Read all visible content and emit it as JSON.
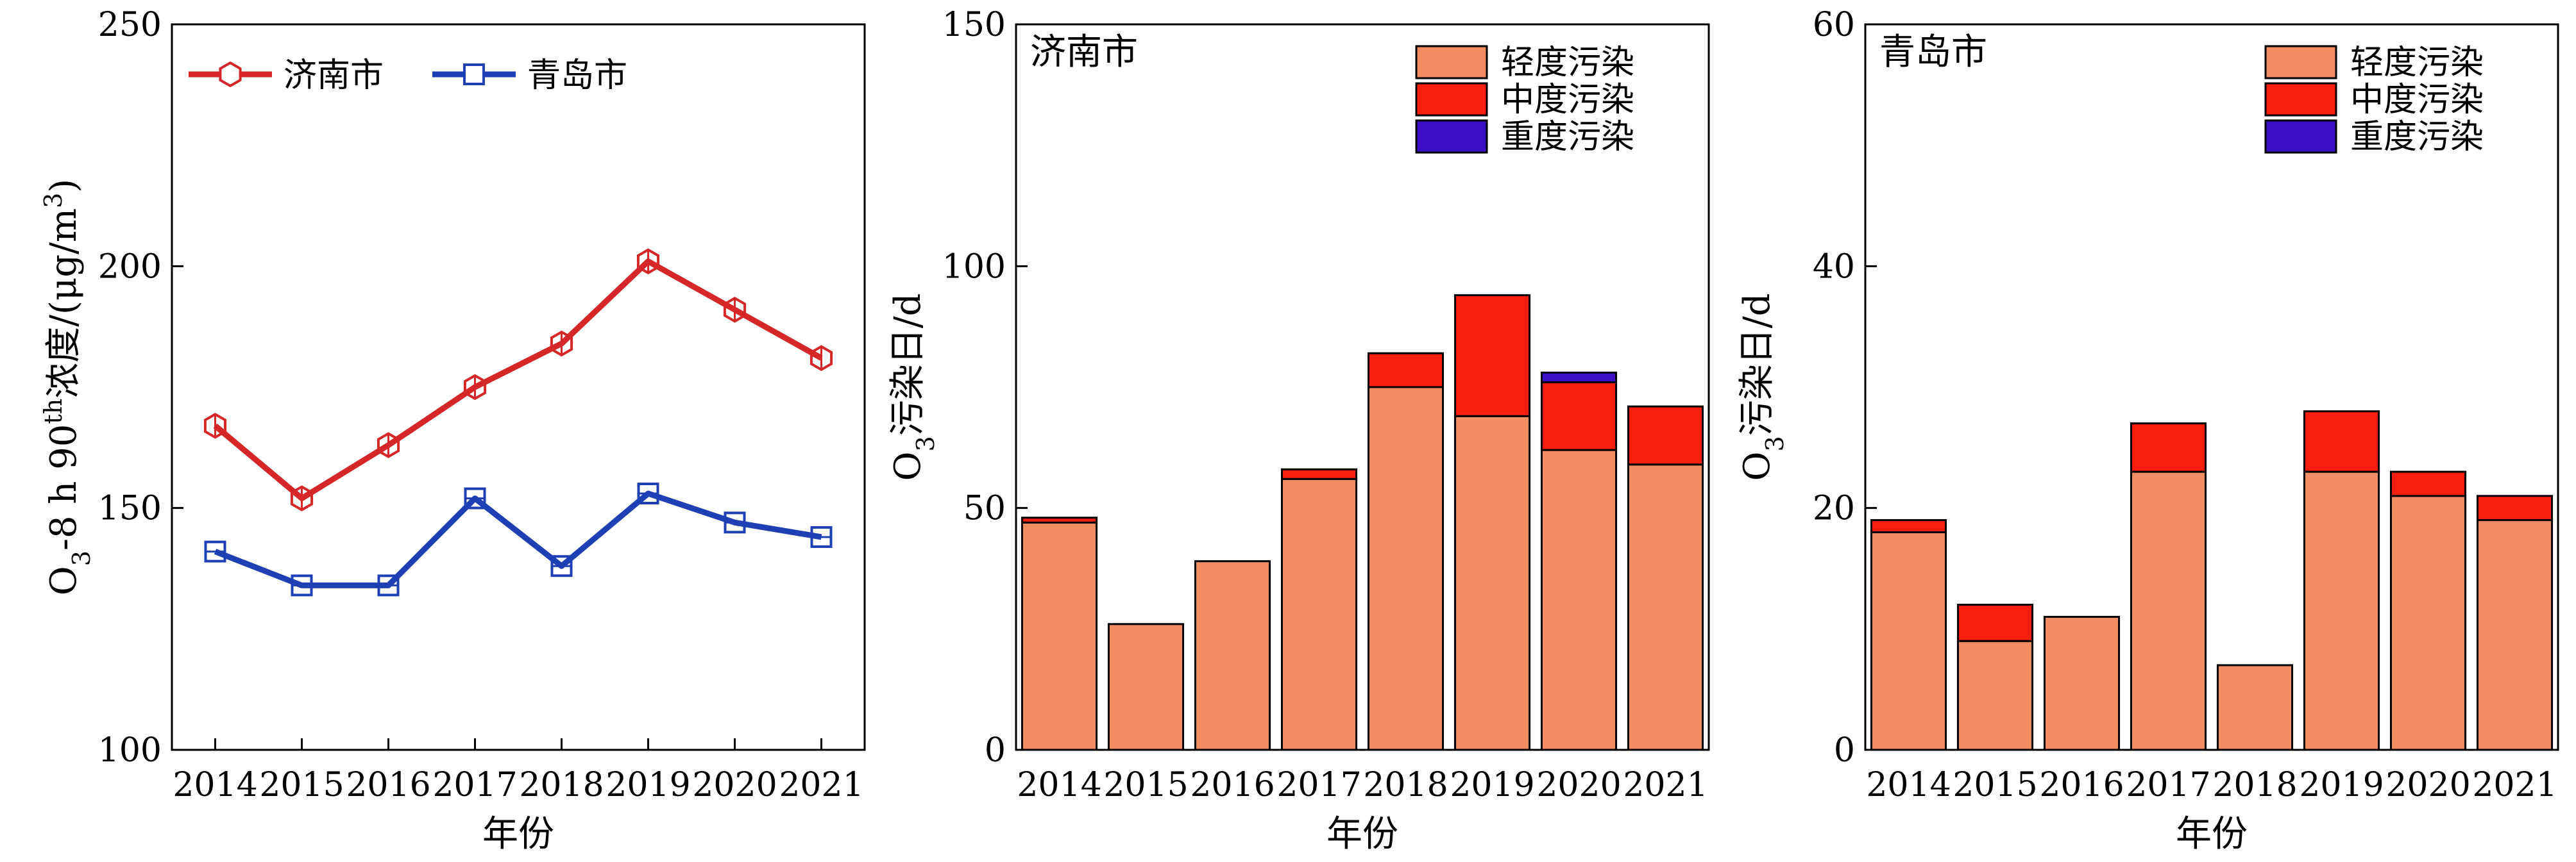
{
  "chart_data": [
    {
      "type": "line",
      "title": "",
      "xlabel": "年份",
      "ylabel": "O3-8 h 90th浓度/(μg/m3)",
      "ylabel_parts": {
        "main": "O",
        "sub": "3",
        "mid": "-8 h 90",
        "sup": "th",
        "tail": "浓度/(μg/m",
        "sup2": "3",
        "end": ")"
      },
      "ylim": [
        100,
        250
      ],
      "yticks": [
        "100",
        "150",
        "200",
        "250"
      ],
      "categories": [
        "2014",
        "2015",
        "2016",
        "2017",
        "2018",
        "2019",
        "2020",
        "2021"
      ],
      "legend_position": "top-left",
      "series": [
        {
          "name": "济南市",
          "color": "#d62728",
          "marker": "hexagon",
          "values": [
            167,
            152,
            163,
            175,
            184,
            201,
            191,
            181
          ]
        },
        {
          "name": "青岛市",
          "color": "#1f3fb4",
          "marker": "square",
          "values": [
            141,
            134,
            134,
            152,
            138,
            153,
            147,
            144
          ]
        }
      ]
    },
    {
      "type": "bar",
      "stacked": true,
      "title": "济南市",
      "xlabel": "年份",
      "ylabel": "O3污染日/d",
      "ylabel_parts": {
        "main": "O",
        "sub": "3",
        "tail": "污染日/d"
      },
      "ylim": [
        0,
        150
      ],
      "yticks": [
        "0",
        "50",
        "100",
        "150"
      ],
      "categories": [
        "2014",
        "2015",
        "2016",
        "2017",
        "2018",
        "2019",
        "2020",
        "2021"
      ],
      "legend_position": "top-right",
      "series": [
        {
          "name": "轻度污染",
          "color": "#f28c62",
          "values": [
            47,
            26,
            39,
            56,
            75,
            69,
            62,
            59
          ]
        },
        {
          "name": "中度污染",
          "color": "#fa1e0e",
          "values": [
            1,
            0,
            0,
            2,
            7,
            25,
            14,
            12
          ]
        },
        {
          "name": "重度污染",
          "color": "#3d0fc4",
          "values": [
            0,
            0,
            0,
            0,
            0,
            0,
            2,
            0
          ]
        }
      ]
    },
    {
      "type": "bar",
      "stacked": true,
      "title": "青岛市",
      "xlabel": "年份",
      "ylabel": "O3污染日/d",
      "ylabel_parts": {
        "main": "O",
        "sub": "3",
        "tail": "污染日/d"
      },
      "ylim": [
        0,
        60
      ],
      "yticks": [
        "0",
        "20",
        "40",
        "60"
      ],
      "categories": [
        "2014",
        "2015",
        "2016",
        "2017",
        "2018",
        "2019",
        "2020",
        "2021"
      ],
      "legend_position": "top-right",
      "series": [
        {
          "name": "轻度污染",
          "color": "#f28c62",
          "values": [
            18,
            9,
            11,
            23,
            7,
            23,
            21,
            19
          ]
        },
        {
          "name": "中度污染",
          "color": "#fa1e0e",
          "values": [
            1,
            3,
            0,
            4,
            0,
            5,
            2,
            2
          ]
        },
        {
          "name": "重度污染",
          "color": "#3d0fc4",
          "values": [
            0,
            0,
            0,
            0,
            0,
            0,
            0,
            0
          ]
        }
      ]
    }
  ]
}
